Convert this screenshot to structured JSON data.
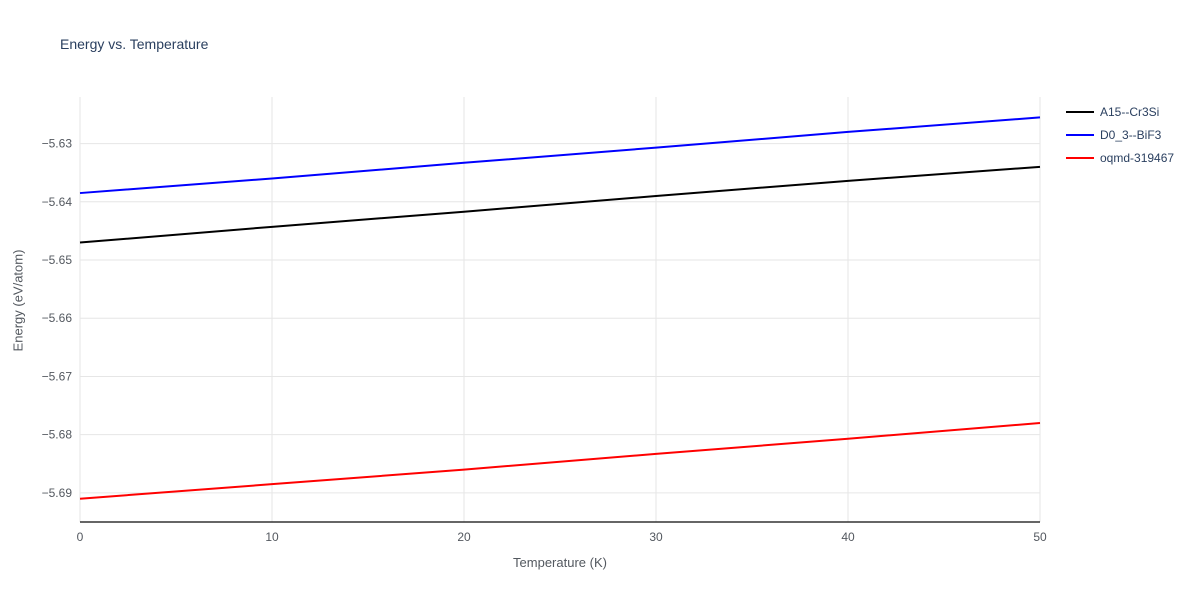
{
  "chart_data": {
    "type": "line",
    "title": "Energy vs. Temperature",
    "xlabel": "Temperature (K)",
    "ylabel": "Energy (eV/atom)",
    "xlim": [
      0,
      50
    ],
    "ylim": [
      -5.695,
      -5.622
    ],
    "xticks": [
      0,
      10,
      20,
      30,
      40,
      50
    ],
    "yticks": [
      -5.63,
      -5.64,
      -5.65,
      -5.66,
      -5.67,
      -5.68,
      -5.69
    ],
    "grid": true,
    "legend_position": "top-right-outside",
    "x": [
      0,
      10,
      20,
      30,
      40,
      50
    ],
    "series": [
      {
        "name": "A15--Cr3Si",
        "color": "#000000",
        "values": [
          -5.647,
          -5.6443,
          -5.6417,
          -5.639,
          -5.6364,
          -5.634
        ]
      },
      {
        "name": "D0_3--BiF3",
        "color": "#0000ff",
        "values": [
          -5.6385,
          -5.636,
          -5.6333,
          -5.6307,
          -5.628,
          -5.6255
        ]
      },
      {
        "name": "oqmd-319467",
        "color": "#ff0000",
        "values": [
          -5.691,
          -5.6885,
          -5.686,
          -5.6833,
          -5.6807,
          -5.678
        ]
      }
    ],
    "colors": {
      "grid": "#e6e6e6",
      "axis": "#333333",
      "tick_text": "#53585f"
    }
  }
}
